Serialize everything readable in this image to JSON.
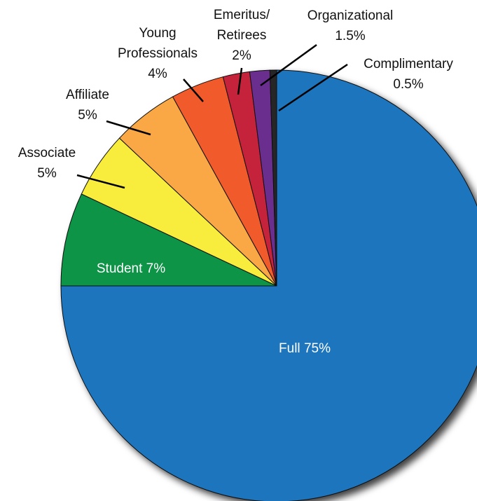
{
  "chart_data": {
    "type": "pie",
    "categories": [
      "Full",
      "Student",
      "Associate",
      "Affiliate",
      "Young\nProfessionals",
      "Emeritus/\nRetirees",
      "Organizational",
      "Complimentary"
    ],
    "values": [
      75,
      7,
      5,
      5,
      4,
      2,
      1.5,
      0.5
    ],
    "value_labels": [
      "75%",
      "7%",
      "5%",
      "5%",
      "4%",
      "2%",
      "1.5%",
      "0.5%"
    ],
    "colors": [
      "#1f74bd",
      "#0b9446",
      "#f8ed3c",
      "#f9a844",
      "#f15a2b",
      "#c5203b",
      "#6b2f8e",
      "#252525"
    ]
  }
}
